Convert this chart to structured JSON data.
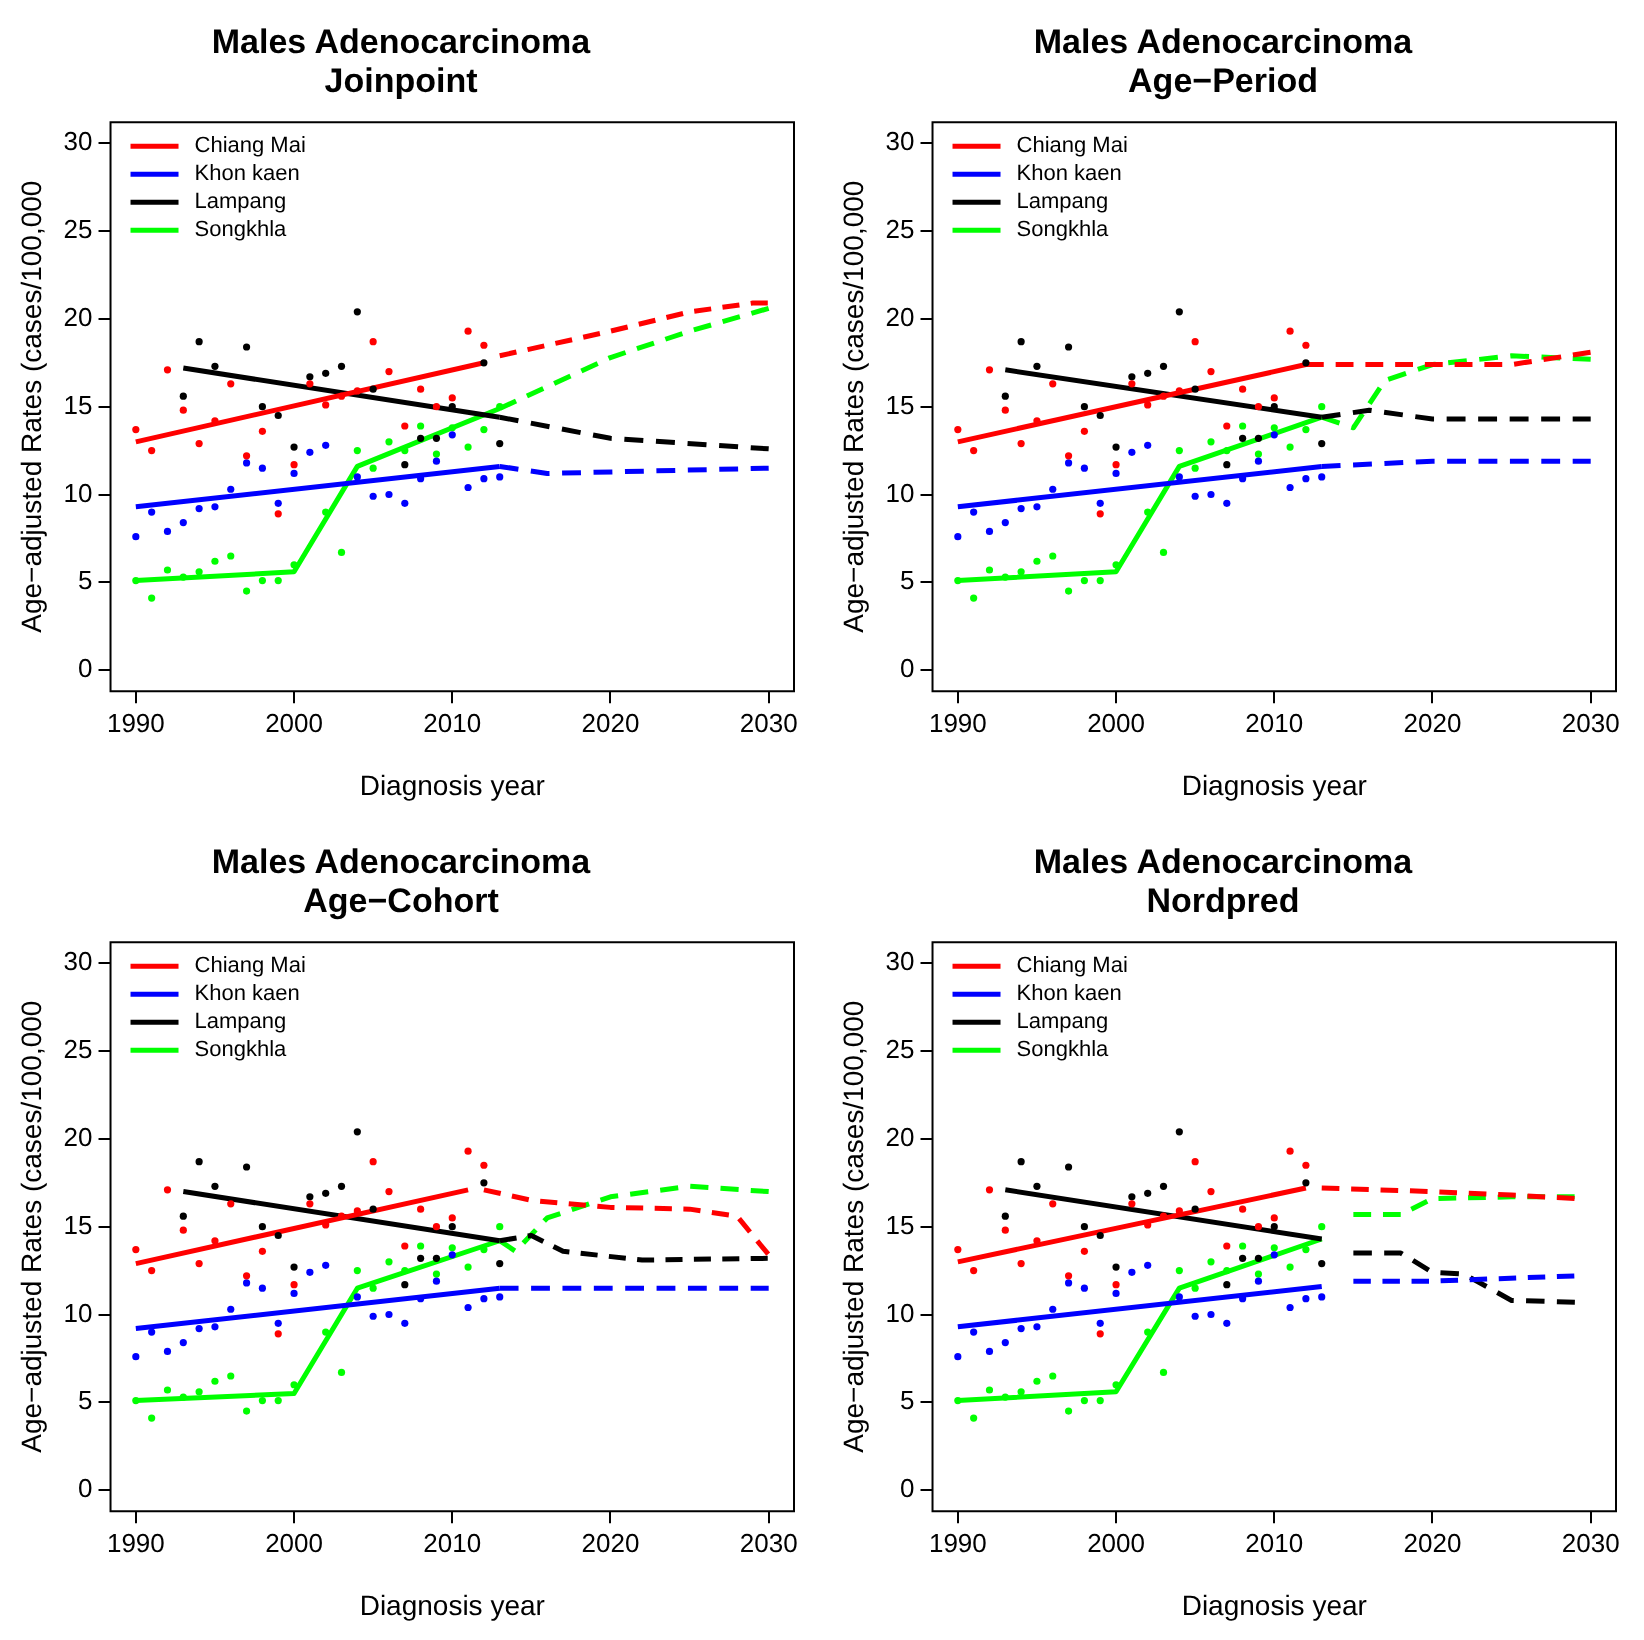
{
  "chart_data": [
    {
      "type": "line",
      "title": "Males Adenocarcinoma",
      "subtitle": "Joinpoint",
      "xlabel": "Diagnosis year",
      "ylabel": "Age−adjusted Rates (cases/100,000",
      "xlim": [
        1988.4,
        2031.6
      ],
      "xticks": [
        1990,
        2000,
        2010,
        2020,
        2030
      ],
      "ylim": [
        -1.2,
        31.2
      ],
      "yticks": [
        0,
        5,
        10,
        15,
        20,
        25,
        30
      ],
      "legend": "top left",
      "series": [
        {
          "type": "scatter",
          "marker": "circle",
          "color": "#ff0000",
          "x": [
            1990,
            1991,
            1992,
            1993,
            1994,
            1995,
            1996,
            1997,
            1998,
            1999,
            2000,
            2001,
            2002,
            2003,
            2004,
            2005,
            2006,
            2007,
            2008,
            2009,
            2010,
            2011,
            2012
          ],
          "values": [
            13.7,
            12.5,
            17.1,
            14.8,
            12.9,
            14.2,
            16.3,
            12.2,
            13.6,
            8.9,
            11.7,
            16.3,
            15.1,
            15.6,
            15.9,
            18.7,
            17.0,
            13.9,
            16.0,
            15.0,
            15.5,
            19.3,
            18.5
          ]
        },
        {
          "type": "scatter",
          "marker": "circle",
          "color": "#0000ff",
          "x": [
            1990,
            1991,
            1992,
            1993,
            1994,
            1995,
            1996,
            1997,
            1998,
            1999,
            2000,
            2001,
            2002,
            2003,
            2004,
            2005,
            2006,
            2007,
            2008,
            2009,
            2010,
            2011,
            2012,
            2013
          ],
          "values": [
            7.6,
            9.0,
            7.9,
            8.4,
            9.2,
            9.3,
            10.3,
            11.8,
            11.5,
            9.5,
            11.2,
            12.4,
            12.8,
            null,
            11.0,
            9.9,
            10.0,
            9.5,
            10.9,
            11.9,
            13.4,
            10.4,
            10.9,
            11.0
          ]
        },
        {
          "type": "scatter",
          "marker": "circle",
          "color": "#000000",
          "x": [
            1993,
            1994,
            1995,
            1996,
            1997,
            1998,
            1999,
            2000,
            2001,
            2002,
            2003,
            2004,
            2005,
            2006,
            2007,
            2008,
            2009,
            2010,
            2011,
            2012,
            2013
          ],
          "values": [
            15.6,
            18.7,
            17.3,
            null,
            18.4,
            15.0,
            14.5,
            12.7,
            16.7,
            16.9,
            17.3,
            20.4,
            16.0,
            null,
            11.7,
            13.2,
            13.2,
            15.0,
            null,
            17.5,
            12.9
          ]
        },
        {
          "type": "scatter",
          "marker": "circle",
          "color": "#00ff00",
          "x": [
            1990,
            1991,
            1992,
            1993,
            1994,
            1995,
            1996,
            1997,
            1998,
            1999,
            2000,
            2001,
            2002,
            2003,
            2004,
            2005,
            2006,
            2007,
            2008,
            2009,
            2010,
            2011,
            2012,
            2013
          ],
          "values": [
            5.1,
            4.1,
            5.7,
            5.3,
            5.6,
            6.2,
            6.5,
            4.5,
            5.1,
            5.1,
            6.0,
            null,
            9.0,
            6.7,
            12.5,
            11.5,
            13.0,
            12.5,
            13.9,
            12.3,
            13.8,
            12.7,
            13.7,
            15.0
          ]
        },
        {
          "name": "Chiang Mai",
          "color": "#ff0000",
          "line_style": "solid",
          "x": [
            1990,
            2012
          ],
          "values": [
            13.0,
            17.5
          ]
        },
        {
          "name": "Khon kaen",
          "color": "#0000ff",
          "line_style": "solid",
          "x": [
            1990,
            2013
          ],
          "values": [
            9.3,
            11.6
          ]
        },
        {
          "name": "Lampang",
          "color": "#000000",
          "line_style": "solid",
          "x": [
            1993,
            2013
          ],
          "values": [
            17.2,
            14.4
          ]
        },
        {
          "name": "Songkhla",
          "color": "#00ff00",
          "line_style": "solid",
          "x": [
            1990,
            2000,
            2004,
            2013
          ],
          "values": [
            5.1,
            5.6,
            11.6,
            14.9
          ]
        },
        {
          "color": "#ff0000",
          "line_style": "dashed",
          "x": [
            2013,
            2020,
            2025,
            2029,
            2030
          ],
          "values": [
            17.9,
            19.3,
            20.4,
            20.9,
            20.9
          ]
        },
        {
          "color": "#0000ff",
          "line_style": "dashed",
          "x": [
            2013,
            2016,
            2030
          ],
          "values": [
            11.6,
            11.2,
            11.5
          ]
        },
        {
          "color": "#000000",
          "line_style": "dashed",
          "x": [
            2013,
            2020,
            2030
          ],
          "values": [
            14.4,
            13.2,
            12.6
          ]
        },
        {
          "color": "#00ff00",
          "line_style": "dashed",
          "x": [
            2013,
            2020,
            2025,
            2030
          ],
          "values": [
            14.9,
            17.8,
            19.3,
            20.6
          ]
        }
      ]
    },
    {
      "type": "line",
      "title": "Males Adenocarcinoma",
      "subtitle": "Age−Period",
      "xlabel": "Diagnosis year",
      "ylabel": "Age−adjusted Rates (cases/100,000",
      "xlim": [
        1988.4,
        2031.6
      ],
      "xticks": [
        1990,
        2000,
        2010,
        2020,
        2030
      ],
      "ylim": [
        -1.2,
        31.2
      ],
      "yticks": [
        0,
        5,
        10,
        15,
        20,
        25,
        30
      ],
      "legend": "top left",
      "series": [
        {
          "type": "scatter",
          "marker": "circle",
          "color": "#ff0000",
          "x": [
            1990,
            1991,
            1992,
            1993,
            1994,
            1995,
            1996,
            1997,
            1998,
            1999,
            2000,
            2001,
            2002,
            2003,
            2004,
            2005,
            2006,
            2007,
            2008,
            2009,
            2010,
            2011,
            2012
          ],
          "values": [
            13.7,
            12.5,
            17.1,
            14.8,
            12.9,
            14.2,
            16.3,
            12.2,
            13.6,
            8.9,
            11.7,
            16.3,
            15.1,
            15.6,
            15.9,
            18.7,
            17.0,
            13.9,
            16.0,
            15.0,
            15.5,
            19.3,
            18.5
          ]
        },
        {
          "type": "scatter",
          "marker": "circle",
          "color": "#0000ff",
          "x": [
            1990,
            1991,
            1992,
            1993,
            1994,
            1995,
            1996,
            1997,
            1998,
            1999,
            2000,
            2001,
            2002,
            2003,
            2004,
            2005,
            2006,
            2007,
            2008,
            2009,
            2010,
            2011,
            2012,
            2013
          ],
          "values": [
            7.6,
            9.0,
            7.9,
            8.4,
            9.2,
            9.3,
            10.3,
            11.8,
            11.5,
            9.5,
            11.2,
            12.4,
            12.8,
            null,
            11.0,
            9.9,
            10.0,
            9.5,
            10.9,
            11.9,
            13.4,
            10.4,
            10.9,
            11.0
          ]
        },
        {
          "type": "scatter",
          "marker": "circle",
          "color": "#000000",
          "x": [
            1993,
            1994,
            1995,
            1996,
            1997,
            1998,
            1999,
            2000,
            2001,
            2002,
            2003,
            2004,
            2005,
            2006,
            2007,
            2008,
            2009,
            2010,
            2011,
            2012,
            2013
          ],
          "values": [
            15.6,
            18.7,
            17.3,
            null,
            18.4,
            15.0,
            14.5,
            12.7,
            16.7,
            16.9,
            17.3,
            20.4,
            16.0,
            null,
            11.7,
            13.2,
            13.2,
            15.0,
            null,
            17.5,
            12.9
          ]
        },
        {
          "type": "scatter",
          "marker": "circle",
          "color": "#00ff00",
          "x": [
            1990,
            1991,
            1992,
            1993,
            1994,
            1995,
            1996,
            1997,
            1998,
            1999,
            2000,
            2001,
            2002,
            2003,
            2004,
            2005,
            2006,
            2007,
            2008,
            2009,
            2010,
            2011,
            2012,
            2013
          ],
          "values": [
            5.1,
            4.1,
            5.7,
            5.3,
            5.6,
            6.2,
            6.5,
            4.5,
            5.1,
            5.1,
            6.0,
            null,
            9.0,
            6.7,
            12.5,
            11.5,
            13.0,
            12.5,
            13.9,
            12.3,
            13.8,
            12.7,
            13.7,
            15.0
          ]
        },
        {
          "name": "Chiang Mai",
          "color": "#ff0000",
          "line_style": "solid",
          "x": [
            1990,
            2012
          ],
          "values": [
            13.0,
            17.4
          ]
        },
        {
          "name": "Khon kaen",
          "color": "#0000ff",
          "line_style": "solid",
          "x": [
            1990,
            2013
          ],
          "values": [
            9.3,
            11.6
          ]
        },
        {
          "name": "Lampang",
          "color": "#000000",
          "line_style": "solid",
          "x": [
            1993,
            2013
          ],
          "values": [
            17.1,
            14.4
          ]
        },
        {
          "name": "Songkhla",
          "color": "#00ff00",
          "line_style": "solid",
          "x": [
            1990,
            2000,
            2004,
            2013
          ],
          "values": [
            5.1,
            5.6,
            11.6,
            14.4
          ]
        },
        {
          "color": "#ff0000",
          "line_style": "dashed",
          "x": [
            2012,
            2025,
            2030
          ],
          "values": [
            17.4,
            17.4,
            18.1
          ]
        },
        {
          "color": "#0000ff",
          "line_style": "dashed",
          "x": [
            2013,
            2020,
            2030
          ],
          "values": [
            11.6,
            11.9,
            11.9
          ]
        },
        {
          "color": "#000000",
          "line_style": "dashed",
          "x": [
            2013,
            2016,
            2020,
            2030
          ],
          "values": [
            14.4,
            14.8,
            14.3,
            14.3
          ]
        },
        {
          "color": "#00ff00",
          "line_style": "dashed",
          "x": [
            2013,
            2015,
            2017,
            2020,
            2025,
            2030
          ],
          "values": [
            14.4,
            13.8,
            16.5,
            17.4,
            17.9,
            17.7
          ]
        }
      ]
    },
    {
      "type": "line",
      "title": "Males Adenocarcinoma",
      "subtitle": "Age−Cohort",
      "xlabel": "Diagnosis year",
      "ylabel": "Age−adjusted Rates (cases/100,000",
      "xlim": [
        1988.4,
        2031.6
      ],
      "xticks": [
        1990,
        2000,
        2010,
        2020,
        2030
      ],
      "ylim": [
        -1.2,
        31.2
      ],
      "yticks": [
        0,
        5,
        10,
        15,
        20,
        25,
        30
      ],
      "legend": "top left",
      "series": [
        {
          "type": "scatter",
          "marker": "circle",
          "color": "#ff0000",
          "x": [
            1990,
            1991,
            1992,
            1993,
            1994,
            1995,
            1996,
            1997,
            1998,
            1999,
            2000,
            2001,
            2002,
            2003,
            2004,
            2005,
            2006,
            2007,
            2008,
            2009,
            2010,
            2011,
            2012
          ],
          "values": [
            13.7,
            12.5,
            17.1,
            14.8,
            12.9,
            14.2,
            16.3,
            12.2,
            13.6,
            8.9,
            11.7,
            16.3,
            15.1,
            15.6,
            15.9,
            18.7,
            17.0,
            13.9,
            16.0,
            15.0,
            15.5,
            19.3,
            18.5
          ]
        },
        {
          "type": "scatter",
          "marker": "circle",
          "color": "#0000ff",
          "x": [
            1990,
            1991,
            1992,
            1993,
            1994,
            1995,
            1996,
            1997,
            1998,
            1999,
            2000,
            2001,
            2002,
            2003,
            2004,
            2005,
            2006,
            2007,
            2008,
            2009,
            2010,
            2011,
            2012,
            2013
          ],
          "values": [
            7.6,
            9.0,
            7.9,
            8.4,
            9.2,
            9.3,
            10.3,
            11.8,
            11.5,
            9.5,
            11.2,
            12.4,
            12.8,
            null,
            11.0,
            9.9,
            10.0,
            9.5,
            10.9,
            11.9,
            13.4,
            10.4,
            10.9,
            11.0
          ]
        },
        {
          "type": "scatter",
          "marker": "circle",
          "color": "#000000",
          "x": [
            1993,
            1994,
            1995,
            1996,
            1997,
            1998,
            1999,
            2000,
            2001,
            2002,
            2003,
            2004,
            2005,
            2006,
            2007,
            2008,
            2009,
            2010,
            2011,
            2012,
            2013
          ],
          "values": [
            15.6,
            18.7,
            17.3,
            null,
            18.4,
            15.0,
            14.5,
            12.7,
            16.7,
            16.9,
            17.3,
            20.4,
            16.0,
            null,
            11.7,
            13.2,
            13.2,
            15.0,
            null,
            17.5,
            12.9
          ]
        },
        {
          "type": "scatter",
          "marker": "circle",
          "color": "#00ff00",
          "x": [
            1990,
            1991,
            1992,
            1993,
            1994,
            1995,
            1996,
            1997,
            1998,
            1999,
            2000,
            2001,
            2002,
            2003,
            2004,
            2005,
            2006,
            2007,
            2008,
            2009,
            2010,
            2011,
            2012,
            2013
          ],
          "values": [
            5.1,
            4.1,
            5.7,
            5.3,
            5.6,
            6.2,
            6.5,
            4.5,
            5.1,
            5.1,
            6.0,
            null,
            9.0,
            6.7,
            12.5,
            11.5,
            13.0,
            12.5,
            13.9,
            12.3,
            13.8,
            12.7,
            13.7,
            15.0
          ]
        },
        {
          "name": "Chiang Mai",
          "color": "#ff0000",
          "line_style": "solid",
          "x": [
            1990,
            2011
          ],
          "values": [
            12.9,
            17.1
          ]
        },
        {
          "name": "Khon kaen",
          "color": "#0000ff",
          "line_style": "solid",
          "x": [
            1990,
            2013
          ],
          "values": [
            9.2,
            11.5
          ]
        },
        {
          "name": "Lampang",
          "color": "#000000",
          "line_style": "solid",
          "x": [
            1993,
            2013
          ],
          "values": [
            17.0,
            14.2
          ]
        },
        {
          "name": "Songkhla",
          "color": "#00ff00",
          "line_style": "solid",
          "x": [
            1990,
            2000,
            2004,
            2013
          ],
          "values": [
            5.1,
            5.5,
            11.5,
            14.2
          ]
        },
        {
          "color": "#ff0000",
          "line_style": "dashed",
          "x": [
            2012,
            2015,
            2020,
            2025,
            2028,
            2030
          ],
          "values": [
            17.1,
            16.5,
            16.1,
            16.0,
            15.6,
            13.4
          ]
        },
        {
          "color": "#0000ff",
          "line_style": "dashed",
          "x": [
            2013,
            2030
          ],
          "values": [
            11.5,
            11.5
          ]
        },
        {
          "color": "#000000",
          "line_style": "dashed",
          "x": [
            2013,
            2015,
            2017,
            2022,
            2030
          ],
          "values": [
            14.2,
            14.5,
            13.6,
            13.1,
            13.2
          ]
        },
        {
          "color": "#00ff00",
          "line_style": "dashed",
          "x": [
            2013,
            2014,
            2016,
            2020,
            2025,
            2030
          ],
          "values": [
            14.2,
            13.6,
            15.5,
            16.7,
            17.3,
            17.0
          ]
        }
      ]
    },
    {
      "type": "line",
      "title": "Males Adenocarcinoma",
      "subtitle": "Nordpred",
      "xlabel": "Diagnosis year",
      "ylabel": "Age−adjusted Rates (cases/100,000",
      "xlim": [
        1988.4,
        2031.6
      ],
      "xticks": [
        1990,
        2000,
        2010,
        2020,
        2030
      ],
      "ylim": [
        -1.2,
        31.2
      ],
      "yticks": [
        0,
        5,
        10,
        15,
        20,
        25,
        30
      ],
      "legend": "top left",
      "series": [
        {
          "type": "scatter",
          "marker": "circle",
          "color": "#ff0000",
          "x": [
            1990,
            1991,
            1992,
            1993,
            1994,
            1995,
            1996,
            1997,
            1998,
            1999,
            2000,
            2001,
            2002,
            2003,
            2004,
            2005,
            2006,
            2007,
            2008,
            2009,
            2010,
            2011,
            2012
          ],
          "values": [
            13.7,
            12.5,
            17.1,
            14.8,
            12.9,
            14.2,
            16.3,
            12.2,
            13.6,
            8.9,
            11.7,
            16.3,
            15.1,
            15.6,
            15.9,
            18.7,
            17.0,
            13.9,
            16.0,
            15.0,
            15.5,
            19.3,
            18.5
          ]
        },
        {
          "type": "scatter",
          "marker": "circle",
          "color": "#0000ff",
          "x": [
            1990,
            1991,
            1992,
            1993,
            1994,
            1995,
            1996,
            1997,
            1998,
            1999,
            2000,
            2001,
            2002,
            2003,
            2004,
            2005,
            2006,
            2007,
            2008,
            2009,
            2010,
            2011,
            2012,
            2013
          ],
          "values": [
            7.6,
            9.0,
            7.9,
            8.4,
            9.2,
            9.3,
            10.3,
            11.8,
            11.5,
            9.5,
            11.2,
            12.4,
            12.8,
            null,
            11.0,
            9.9,
            10.0,
            9.5,
            10.9,
            11.9,
            13.4,
            10.4,
            10.9,
            11.0
          ]
        },
        {
          "type": "scatter",
          "marker": "circle",
          "color": "#000000",
          "x": [
            1993,
            1994,
            1995,
            1996,
            1997,
            1998,
            1999,
            2000,
            2001,
            2002,
            2003,
            2004,
            2005,
            2006,
            2007,
            2008,
            2009,
            2010,
            2011,
            2012,
            2013
          ],
          "values": [
            15.6,
            18.7,
            17.3,
            null,
            18.4,
            15.0,
            14.5,
            12.7,
            16.7,
            16.9,
            17.3,
            20.4,
            16.0,
            null,
            11.7,
            13.2,
            13.2,
            15.0,
            null,
            17.5,
            12.9
          ]
        },
        {
          "type": "scatter",
          "marker": "circle",
          "color": "#00ff00",
          "x": [
            1990,
            1991,
            1992,
            1993,
            1994,
            1995,
            1996,
            1997,
            1998,
            1999,
            2000,
            2001,
            2002,
            2003,
            2004,
            2005,
            2006,
            2007,
            2008,
            2009,
            2010,
            2011,
            2012,
            2013
          ],
          "values": [
            5.1,
            4.1,
            5.7,
            5.3,
            5.6,
            6.2,
            6.5,
            4.5,
            5.1,
            5.1,
            6.0,
            null,
            9.0,
            6.7,
            12.5,
            11.5,
            13.0,
            12.5,
            13.9,
            12.3,
            13.8,
            12.7,
            13.7,
            15.0
          ]
        },
        {
          "name": "Chiang Mai",
          "color": "#ff0000",
          "line_style": "solid",
          "x": [
            1990,
            2012
          ],
          "values": [
            13.0,
            17.2
          ]
        },
        {
          "name": "Khon kaen",
          "color": "#0000ff",
          "line_style": "solid",
          "x": [
            1990,
            2013
          ],
          "values": [
            9.3,
            11.6
          ]
        },
        {
          "name": "Lampang",
          "color": "#000000",
          "line_style": "solid",
          "x": [
            1993,
            2013
          ],
          "values": [
            17.1,
            14.3
          ]
        },
        {
          "name": "Songkhla",
          "color": "#00ff00",
          "line_style": "solid",
          "x": [
            1990,
            2000,
            2004,
            2013
          ],
          "values": [
            5.1,
            5.6,
            11.5,
            14.3
          ]
        },
        {
          "color": "#ff0000",
          "line_style": "dashed",
          "x": [
            2013,
            2020,
            2025,
            2029
          ],
          "values": [
            17.2,
            17.0,
            16.8,
            16.6
          ]
        },
        {
          "color": "#0000ff",
          "line_style": "dashed",
          "x": [
            2015,
            2020,
            2029
          ],
          "values": [
            11.9,
            11.9,
            12.2
          ]
        },
        {
          "color": "#000000",
          "line_style": "dashed",
          "x": [
            2015,
            2018,
            2020,
            2022,
            2025,
            2029
          ],
          "values": [
            13.5,
            13.5,
            12.4,
            12.3,
            10.8,
            10.7
          ]
        },
        {
          "color": "#00ff00",
          "line_style": "dashed",
          "x": [
            2015,
            2018,
            2020,
            2025,
            2029
          ],
          "values": [
            15.7,
            15.7,
            16.6,
            16.7,
            16.7
          ]
        }
      ]
    }
  ]
}
